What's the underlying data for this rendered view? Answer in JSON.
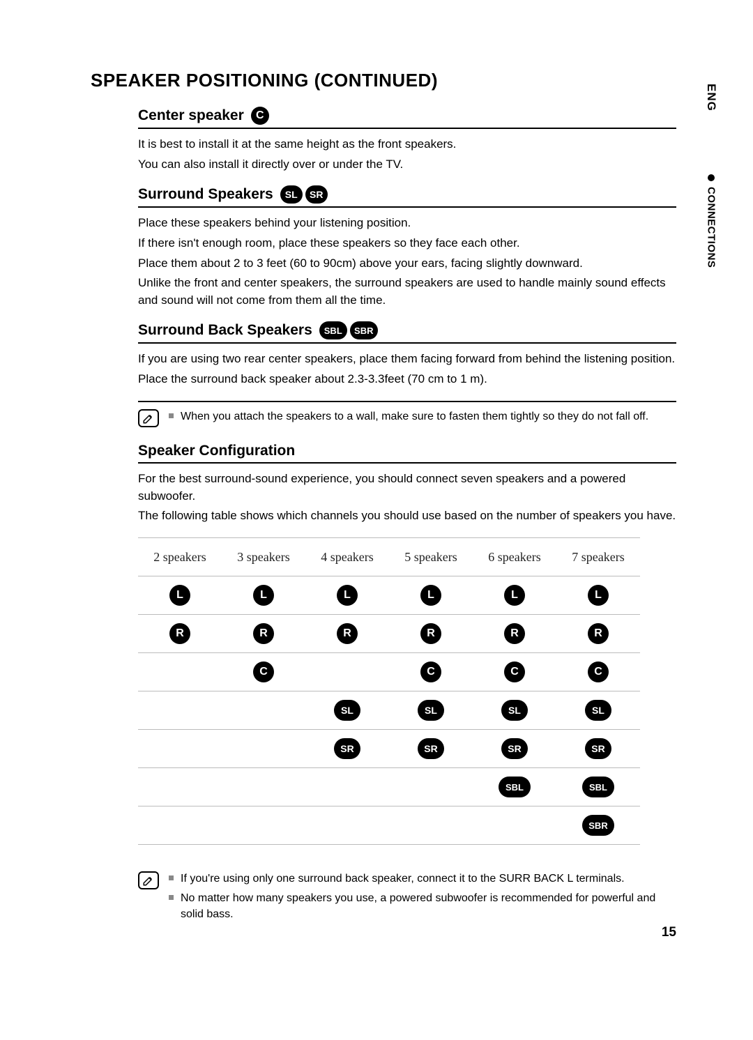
{
  "side": {
    "lang": "ENG",
    "section": "CONNECTIONS"
  },
  "title": "SPEAKER POSITIONING (CONTINUED)",
  "center": {
    "heading": "Center speaker",
    "badge": "C",
    "p1": "It is best to install it at the same height as the front speakers.",
    "p2": "You can also install it directly over or under the TV."
  },
  "surround": {
    "heading": "Surround Speakers",
    "badges": [
      "SL",
      "SR"
    ],
    "p1": "Place these speakers behind your listening position.",
    "p2": "If there isn't enough room, place these speakers so they face each other.",
    "p3": "Place them about 2 to 3 feet (60 to 90cm) above your ears, facing slightly downward.",
    "p4": "Unlike the front and center speakers, the surround speakers are used to handle mainly sound effects and sound will not come from them all the time."
  },
  "back": {
    "heading": "Surround Back Speakers",
    "badges": [
      "SBL",
      "SBR"
    ],
    "p1": "If you are using two rear center speakers, place them facing forward from behind the listening position.",
    "p2": "Place the surround back speaker about 2.3-3.3feet (70 cm to 1 m)."
  },
  "note1": "When you attach the speakers to a wall, make sure to fasten them tightly so they do not fall off.",
  "config": {
    "heading": "Speaker Configuration",
    "p1": "For the best surround-sound experience, you should connect seven speakers and a powered subwoofer.",
    "p2": "The following table shows which channels you should use based on the number of speakers you have."
  },
  "table": {
    "headers": [
      "2 speakers",
      "3  speakers",
      "4 speakers",
      "5 speakers",
      "6 speakers",
      "7 speakers"
    ],
    "rows": [
      [
        {
          "t": "L",
          "s": "c"
        },
        {
          "t": "L",
          "s": "c"
        },
        {
          "t": "L",
          "s": "c"
        },
        {
          "t": "L",
          "s": "c"
        },
        {
          "t": "L",
          "s": "c"
        },
        {
          "t": "L",
          "s": "c"
        }
      ],
      [
        {
          "t": "R",
          "s": "c"
        },
        {
          "t": "R",
          "s": "c"
        },
        {
          "t": "R",
          "s": "c"
        },
        {
          "t": "R",
          "s": "c"
        },
        {
          "t": "R",
          "s": "c"
        },
        {
          "t": "R",
          "s": "c"
        }
      ],
      [
        null,
        {
          "t": "C",
          "s": "c"
        },
        null,
        {
          "t": "C",
          "s": "c"
        },
        {
          "t": "C",
          "s": "c"
        },
        {
          "t": "C",
          "s": "c"
        }
      ],
      [
        null,
        null,
        {
          "t": "SL",
          "s": "p"
        },
        {
          "t": "SL",
          "s": "p"
        },
        {
          "t": "SL",
          "s": "p"
        },
        {
          "t": "SL",
          "s": "p"
        }
      ],
      [
        null,
        null,
        {
          "t": "SR",
          "s": "p"
        },
        {
          "t": "SR",
          "s": "p"
        },
        {
          "t": "SR",
          "s": "p"
        },
        {
          "t": "SR",
          "s": "p"
        }
      ],
      [
        null,
        null,
        null,
        null,
        {
          "t": "SBL",
          "s": "px"
        },
        {
          "t": "SBL",
          "s": "px"
        }
      ],
      [
        null,
        null,
        null,
        null,
        null,
        {
          "t": "SBR",
          "s": "px"
        }
      ]
    ]
  },
  "notes2": [
    "If you're using only one surround back speaker, connect it to the SURR BACK L terminals.",
    "No matter how many speakers you use, a powered subwoofer is recommended for powerful and solid bass."
  ],
  "pageNum": "15"
}
